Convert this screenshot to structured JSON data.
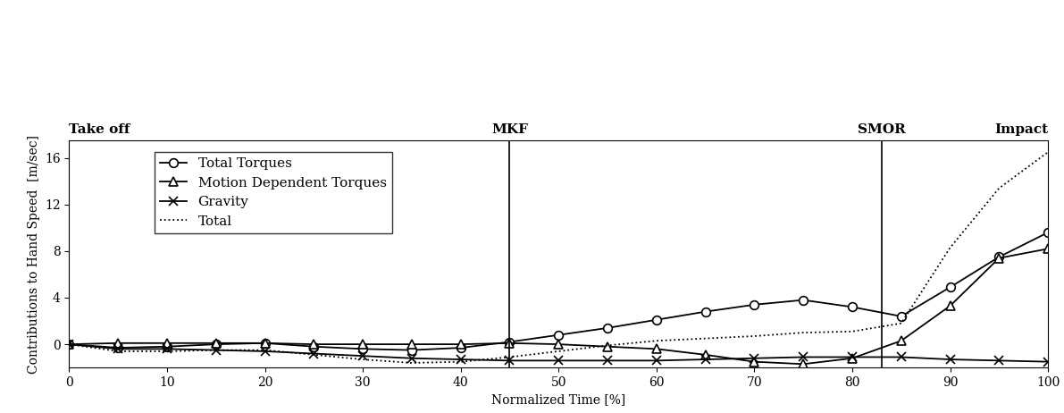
{
  "chart_data": {
    "type": "line",
    "x_label": "Normalized Time [%]",
    "y_label": "Contributions to Hand Speed  [m/sec]",
    "x": [
      0,
      5,
      10,
      15,
      20,
      25,
      30,
      35,
      40,
      45,
      50,
      55,
      60,
      65,
      70,
      75,
      80,
      85,
      90,
      95,
      100
    ],
    "series": [
      {
        "name": "Total Torques",
        "color": "#000000",
        "marker": "circle",
        "line_style": "solid",
        "values": [
          0,
          -0.3,
          -0.2,
          0,
          0.1,
          -0.2,
          -0.4,
          -0.5,
          -0.3,
          0.2,
          0.8,
          1.4,
          2.1,
          2.8,
          3.4,
          3.8,
          3.2,
          2.4,
          4.9,
          7.5,
          9.6
        ]
      },
      {
        "name": "Motion Dependent Torques",
        "color": "#000000",
        "marker": "triangle",
        "line_style": "solid",
        "values": [
          0,
          0.1,
          0.1,
          0.1,
          0.1,
          0,
          0,
          0,
          0,
          0.1,
          0,
          -0.2,
          -0.4,
          -0.9,
          -1.5,
          -1.7,
          -1.2,
          0.3,
          3.3,
          7.4,
          8.2
        ]
      },
      {
        "name": "Gravity",
        "color": "#000000",
        "marker": "x",
        "line_style": "solid",
        "values": [
          0,
          -0.4,
          -0.4,
          -0.5,
          -0.6,
          -0.8,
          -1.0,
          -1.2,
          -1.3,
          -1.4,
          -1.4,
          -1.4,
          -1.4,
          -1.3,
          -1.2,
          -1.1,
          -1.1,
          -1.1,
          -1.3,
          -1.4,
          -1.5
        ]
      },
      {
        "name": "Total",
        "color": "#000000",
        "marker": "none",
        "line_style": "dotted",
        "values": [
          0,
          -0.6,
          -0.6,
          -0.5,
          -0.5,
          -0.9,
          -1.3,
          -1.6,
          -1.5,
          -1.1,
          -0.6,
          -0.1,
          0.3,
          0.5,
          0.7,
          1.0,
          1.1,
          1.8,
          8.3,
          13.4,
          16.5
        ]
      }
    ],
    "events": [
      {
        "x": 0,
        "label": "Take off"
      },
      {
        "x": 45,
        "label": "MKF"
      },
      {
        "x": 83,
        "label": "SMOR"
      },
      {
        "x": 100,
        "label": "Impact"
      }
    ],
    "xlim": [
      0,
      100
    ],
    "xticks": [
      0,
      10,
      20,
      30,
      40,
      50,
      60,
      70,
      80,
      90,
      100
    ],
    "ylim": [
      -2,
      17.5
    ],
    "yticks": [
      0,
      4,
      8,
      12,
      16
    ],
    "legend": "upper left",
    "grid": false
  }
}
